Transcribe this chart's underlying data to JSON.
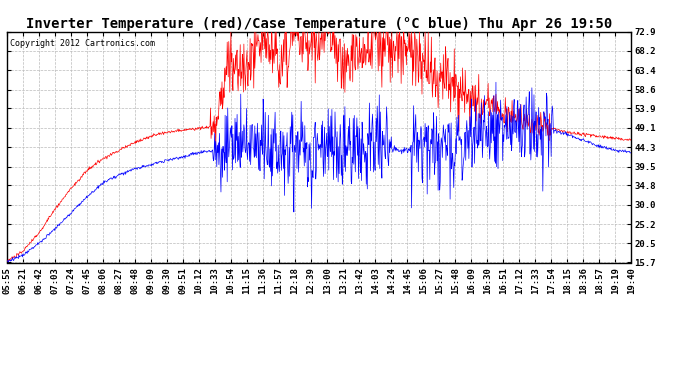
{
  "title": "Inverter Temperature (red)/Case Temperature (°C blue) Thu Apr 26 19:50",
  "copyright": "Copyright 2012 Cartronics.com",
  "background_color": "#ffffff",
  "plot_bg_color": "#ffffff",
  "yticks": [
    15.7,
    20.5,
    25.2,
    30.0,
    34.8,
    39.5,
    44.3,
    49.1,
    53.9,
    58.6,
    63.4,
    68.2,
    72.9
  ],
  "ymin": 15.7,
  "ymax": 72.9,
  "xtick_labels": [
    "05:55",
    "06:21",
    "06:42",
    "07:03",
    "07:24",
    "07:45",
    "08:06",
    "08:27",
    "08:48",
    "09:09",
    "09:30",
    "09:51",
    "10:12",
    "10:33",
    "10:54",
    "11:15",
    "11:36",
    "11:57",
    "12:18",
    "12:39",
    "13:00",
    "13:21",
    "13:42",
    "14:03",
    "14:24",
    "14:45",
    "15:06",
    "15:27",
    "15:48",
    "16:09",
    "16:30",
    "16:51",
    "17:12",
    "17:33",
    "17:54",
    "18:15",
    "18:36",
    "18:57",
    "19:19",
    "19:40"
  ],
  "red_line_color": "#ff0000",
  "blue_line_color": "#0000ff",
  "grid_color": "#bbbbbb",
  "title_fontsize": 10,
  "tick_fontsize": 6.5,
  "copyright_fontsize": 6
}
